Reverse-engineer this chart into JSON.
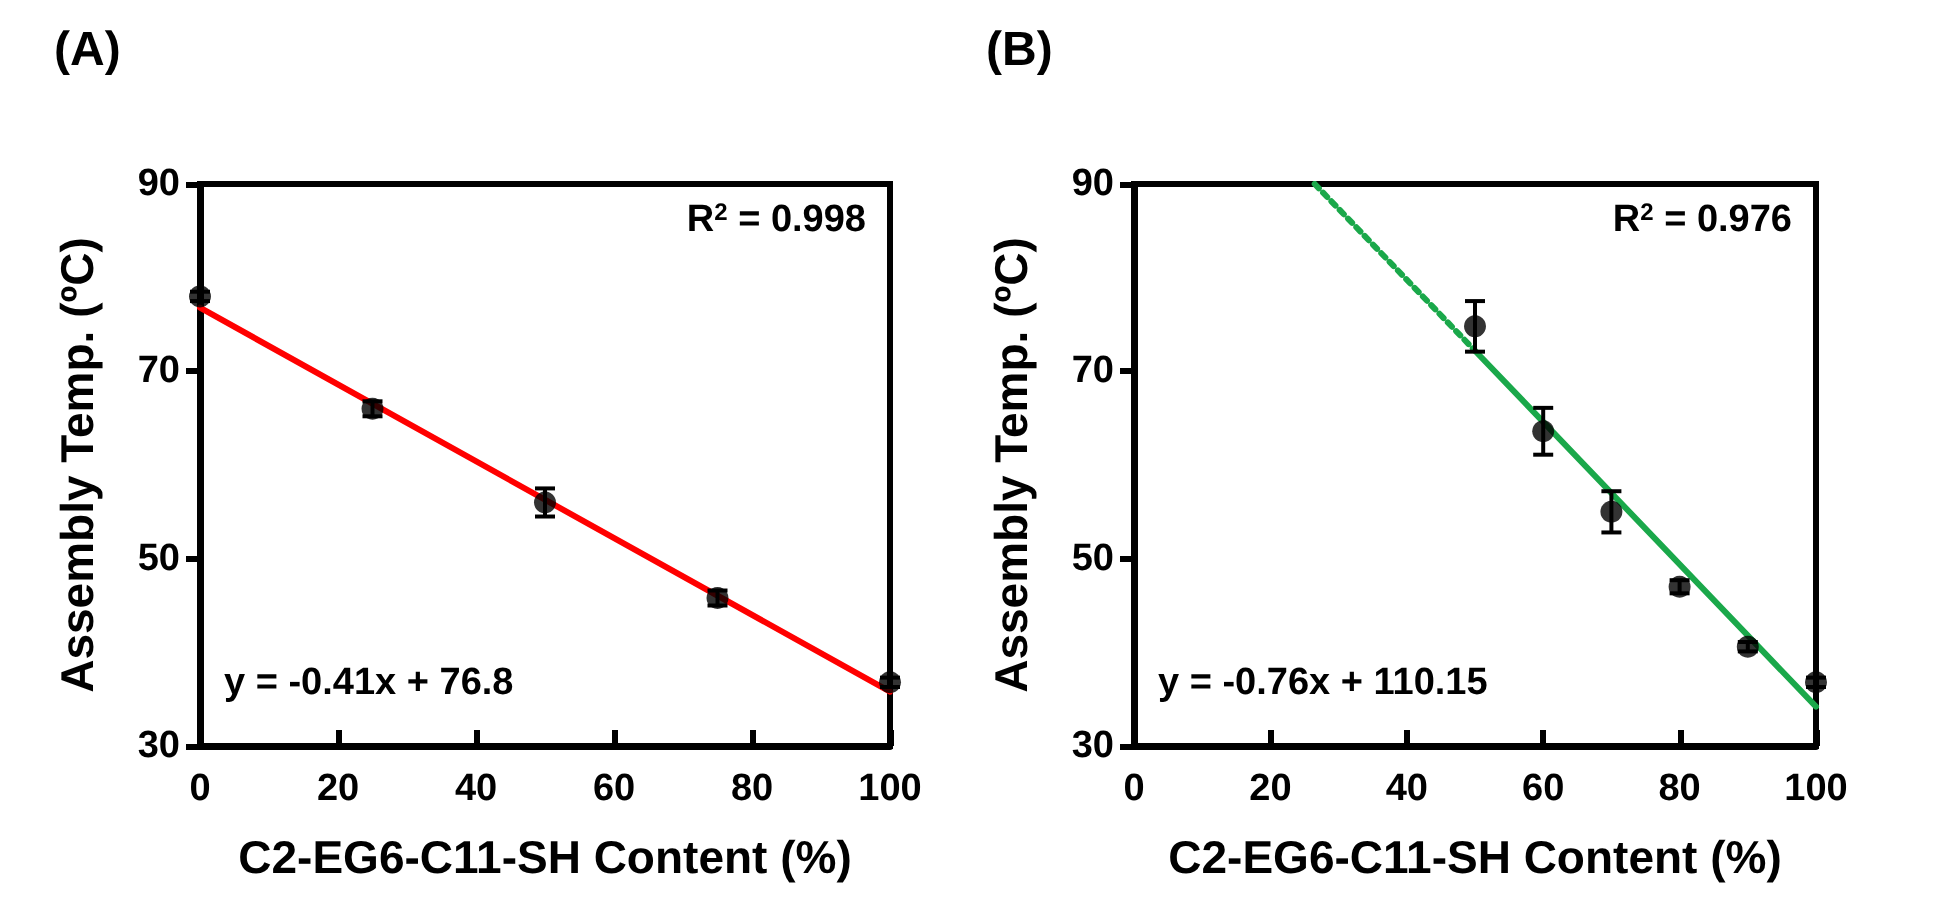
{
  "chart_data": [
    {
      "type": "scatter",
      "title": "(A)",
      "xlabel": "C2-EG6-C11-SH Content (%)",
      "ylabel": "Assembly Temp. (ºC)",
      "annotations": [
        "R$^{2}$ = 0.998",
        "y = -0.41x + 76.8"
      ],
      "xlim": [
        0,
        100
      ],
      "xticks": [
        0,
        20,
        40,
        60,
        80,
        100
      ],
      "ylim": [
        30,
        90
      ],
      "yticks": [
        30,
        50,
        70,
        90
      ],
      "marker": "circle",
      "series": [
        {
          "color": "#000000",
          "x": [
            0,
            25,
            50,
            75,
            100
          ],
          "values": [
            78.0,
            66.0,
            56.0,
            45.8,
            36.8
          ],
          "errors": [
            0.5,
            0.8,
            1.5,
            0.8,
            0.5
          ]
        },
        {
          "type": "line",
          "color": "#ff0000",
          "line_style": "solid",
          "marker": "none",
          "x": [
            0,
            100
          ],
          "values": [
            76.8,
            35.8
          ]
        }
      ]
    },
    {
      "type": "scatter",
      "title": "(B)",
      "xlabel": "C2-EG6-C11-SH Content (%)",
      "ylabel": "Assembly Temp. (ºC)",
      "annotations": [
        "R$^{2}$ = 0.976",
        "y = -0.76x + 110.15"
      ],
      "xlim": [
        0,
        100
      ],
      "xticks": [
        0,
        20,
        40,
        60,
        80,
        100
      ],
      "ylim": [
        30,
        90
      ],
      "yticks": [
        30,
        50,
        70,
        90
      ],
      "marker": "circle",
      "series": [
        {
          "color": "#000000",
          "x": [
            50,
            60,
            70,
            80,
            90,
            100
          ],
          "values": [
            74.8,
            63.6,
            55.0,
            47.0,
            40.6,
            36.8
          ],
          "errors": [
            2.7,
            2.5,
            2.2,
            0.7,
            0.5,
            0.5
          ]
        },
        {
          "type": "line",
          "color": "#1aa84a",
          "line_style": "dotted",
          "marker": "none",
          "x": [
            26.5,
            50
          ],
          "values": [
            90,
            72.2
          ]
        },
        {
          "type": "line",
          "color": "#1aa84a",
          "line_style": "solid",
          "marker": "none",
          "x": [
            50,
            100
          ],
          "values": [
            72.2,
            34.2
          ]
        }
      ]
    }
  ]
}
